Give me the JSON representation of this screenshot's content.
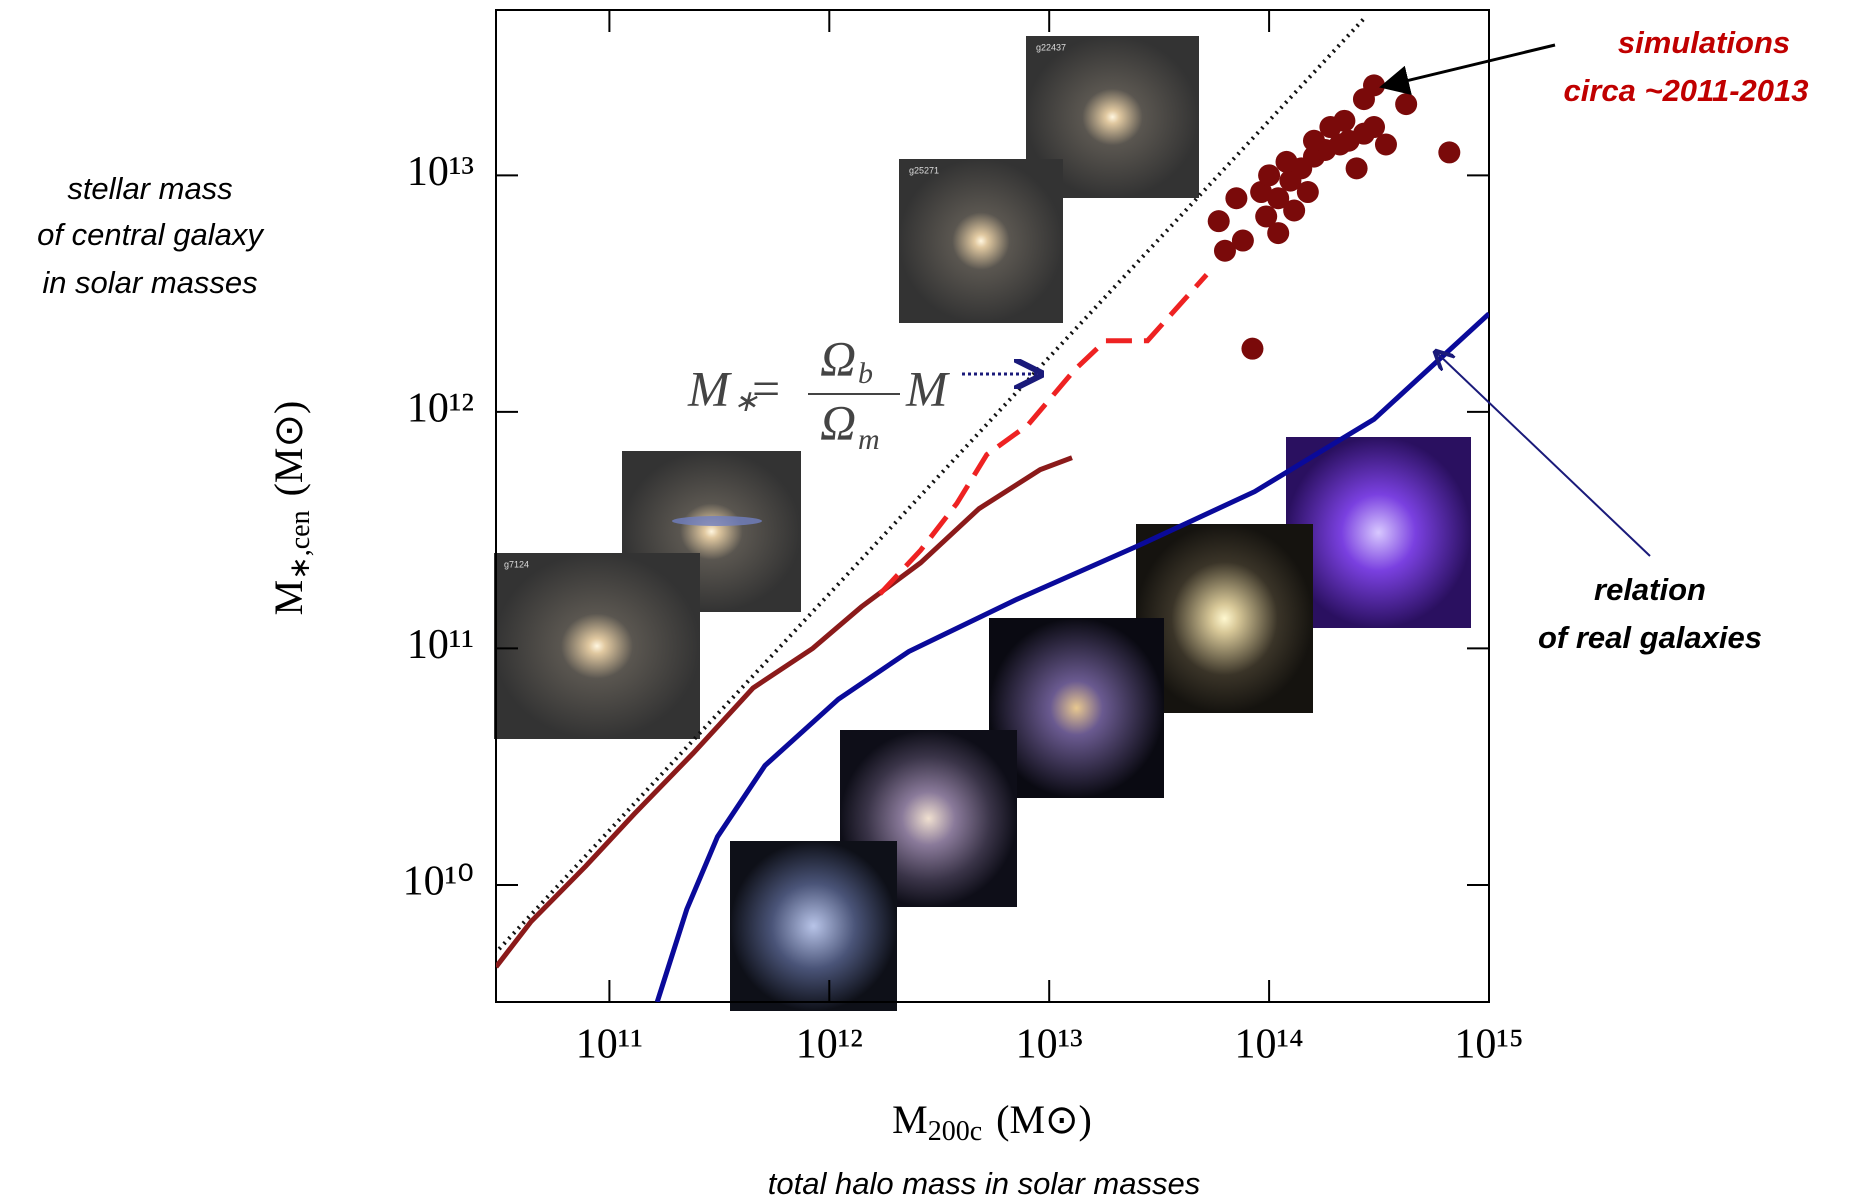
{
  "chart_data": {
    "type": "line",
    "log_x": true,
    "log_y": true,
    "xlim": [
      30500000000.0,
      1000000000000000.0
    ],
    "ylim": [
      3200000000.0,
      50000000000000.0
    ],
    "xticks": [
      {
        "value": 100000000000.0,
        "label": "10¹¹"
      },
      {
        "value": 1000000000000.0,
        "label": "10¹²"
      },
      {
        "value": 10000000000000.0,
        "label": "10¹³"
      },
      {
        "value": 100000000000000.0,
        "label": "10¹⁴"
      },
      {
        "value": 1000000000000000.0,
        "label": "10¹⁵"
      }
    ],
    "yticks": [
      {
        "value": 10000000000.0,
        "label": "10¹⁰"
      },
      {
        "value": 100000000000.0,
        "label": "10¹¹"
      },
      {
        "value": 1000000000000.0,
        "label": "10¹²"
      },
      {
        "value": 10000000000000.0,
        "label": "10¹³"
      }
    ],
    "x_label": {
      "symbol": "M",
      "sub": "200c",
      "unit": "(M⊙)"
    },
    "y_label": {
      "symbol": "M",
      "sub": "∗,cen",
      "unit": "(M⊙)"
    },
    "x_note": "total halo mass in solar masses",
    "y_note": [
      "stellar mass",
      "of central galaxy",
      "in solar masses"
    ],
    "annotations": {
      "simulations": [
        "simulations",
        "circa ~2011-2013"
      ],
      "real": [
        "relation",
        "of real galaxies"
      ],
      "formula": {
        "lhs": "M",
        "lhs_sub": "∗",
        "eq": "=",
        "num": "Ω",
        "num_sub": "b",
        "den": "Ω",
        "den_sub": "m",
        "rhs": "M"
      }
    },
    "image_labels": [
      "g22437",
      "g25271",
      "g7124"
    ],
    "series": [
      {
        "type": "line",
        "style": "dotted",
        "color": "#111111",
        "x": [
          30000000000.0,
          270000000000000.0
        ],
        "values": [
          5100000000.0,
          46000000000000.0
        ]
      },
      {
        "type": "line",
        "style": "solid",
        "color": "#8b1a1a",
        "x": [
          30500000000.0,
          44000000000.0,
          78000000000.0,
          130000000000.0,
          240000000000.0,
          450000000000.0,
          840000000000.0,
          1400000000000.0,
          2600000000000.0,
          4800000000000.0,
          9100000000000.0,
          12700000000000.0
        ],
        "values": [
          4500000000.0,
          7000000000.0,
          12000000000.0,
          20000000000.0,
          36000000000.0,
          68000000000.0,
          100000000000.0,
          150000000000.0,
          230000000000.0,
          390000000000.0,
          570000000000.0,
          640000000000.0
        ]
      },
      {
        "type": "line",
        "style": "dashed",
        "color": "#ee2222",
        "x": [
          1700000000000.0,
          2600000000000.0,
          3800000000000.0,
          5200000000000.0,
          8000000000000.0,
          13000000000000.0,
          18000000000000.0,
          28000000000000.0,
          52000000000000.0
        ],
        "values": [
          170000000000.0,
          260000000000.0,
          410000000000.0,
          660000000000.0,
          880000000000.0,
          1500000000000.0,
          2000000000000.0,
          2000000000000.0,
          3800000000000.0
        ]
      },
      {
        "type": "line",
        "style": "solid",
        "color": "#0a0a9a",
        "x": [
          165000000000.0,
          225000000000.0,
          310000000000.0,
          510000000000.0,
          1100000000000.0,
          2300000000000.0,
          7000000000000.0,
          25000000000000.0,
          86000000000000.0,
          300000000000000.0,
          1000000000000000.0
        ],
        "values": [
          3200000000.0,
          7900000000.0,
          16000000000.0,
          32000000000.0,
          61000000000.0,
          97000000000.0,
          160000000000.0,
          270000000000.0,
          460000000000.0,
          930000000000.0,
          2600000000000.0
        ]
      },
      {
        "type": "scatter",
        "color": "#7a0a0a",
        "x": [
          300000000000000.0,
          270000000000000.0,
          420000000000000.0,
          660000000000000.0,
          84000000000000.0,
          59000000000000.0,
          63000000000000.0,
          76000000000000.0,
          97000000000000.0,
          110000000000000.0,
          125000000000000.0,
          140000000000000.0,
          160000000000000.0,
          180000000000000.0,
          210000000000000.0,
          230000000000000.0,
          270000000000000.0,
          160000000000000.0,
          190000000000000.0,
          220000000000000.0,
          300000000000000.0,
          340000000000000.0,
          110000000000000.0,
          92000000000000.0,
          130000000000000.0,
          150000000000000.0,
          71000000000000.0,
          100000000000000.0,
          120000000000000.0,
          250000000000000.0
        ],
        "values": [
          24000000000000.0,
          21000000000000.0,
          20000000000000.0,
          12500000000000.0,
          1850000000000.0,
          6400000000000.0,
          4800000000000.0,
          5300000000000.0,
          6700000000000.0,
          8000000000000.0,
          9500000000000.0,
          10700000000000.0,
          12000000000000.0,
          12800000000000.0,
          13500000000000.0,
          14000000000000.0,
          15000000000000.0,
          14000000000000.0,
          16000000000000.0,
          17000000000000.0,
          16000000000000.0,
          13500000000000.0,
          5700000000000.0,
          8500000000000.0,
          7100000000000.0,
          8500000000000.0,
          8000000000000.0,
          10000000000000.0,
          11400000000000.0,
          10700000000000.0
        ]
      }
    ]
  }
}
